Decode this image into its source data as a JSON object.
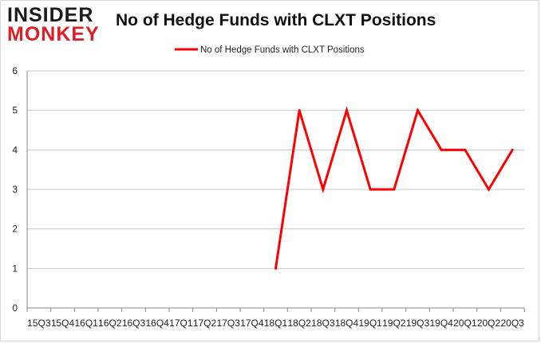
{
  "logo": {
    "line1": "INSIDER",
    "line2": "MONKEY"
  },
  "chart_data": {
    "type": "line",
    "title": "No of Hedge Funds with CLXT Positions",
    "xlabel": "",
    "ylabel": "",
    "categories": [
      "15Q3",
      "15Q4",
      "16Q1",
      "16Q2",
      "16Q3",
      "16Q4",
      "17Q1",
      "17Q2",
      "17Q3",
      "17Q4",
      "18Q1",
      "18Q2",
      "18Q3",
      "18Q4",
      "19Q1",
      "19Q2",
      "19Q3",
      "19Q4",
      "20Q1",
      "20Q2",
      "20Q3"
    ],
    "series": [
      {
        "name": "No of Hedge Funds with CLXT Positions",
        "color": "#ff0000",
        "values": [
          null,
          null,
          null,
          null,
          null,
          null,
          null,
          null,
          null,
          null,
          1,
          5,
          3,
          5,
          3,
          3,
          5,
          4,
          4,
          3,
          4
        ]
      }
    ],
    "ylim": [
      0,
      6
    ],
    "yticks": [
      "0",
      "1",
      "2",
      "3",
      "4",
      "5",
      "6"
    ],
    "grid": true,
    "legend_position": "top"
  }
}
